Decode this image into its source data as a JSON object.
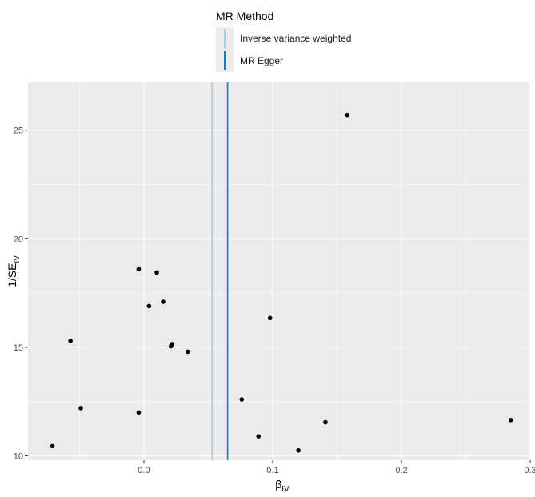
{
  "chart_data": {
    "type": "scatter",
    "xlabel_main": "β",
    "xlabel_sub": "IV",
    "ylabel_main": "1/SE",
    "ylabel_sub": "IV",
    "xlim": [
      -0.09,
      0.3
    ],
    "ylim": [
      9.8,
      27.2
    ],
    "x_ticks": [
      0.0,
      0.1,
      0.2,
      0.3
    ],
    "x_tick_labels": [
      "0.0",
      "0.1",
      "0.2",
      "0.3"
    ],
    "y_ticks": [
      10,
      15,
      20,
      25
    ],
    "y_tick_labels": [
      "10",
      "15",
      "20",
      "25"
    ],
    "grid": true,
    "legend_position": "top",
    "legend": {
      "title": "MR Method",
      "items": [
        {
          "name": "Inverse variance weighted",
          "color": "#a6cee3"
        },
        {
          "name": "MR Egger",
          "color": "#1f78b4"
        }
      ]
    },
    "vlines": [
      {
        "name": "Inverse variance weighted",
        "x": 0.053,
        "color": "#a6cee3"
      },
      {
        "name": "MR Egger",
        "x": 0.065,
        "color": "#1f78b4"
      }
    ],
    "points": [
      {
        "x": 0.158,
        "y": 25.7
      },
      {
        "x": -0.004,
        "y": 18.6
      },
      {
        "x": 0.01,
        "y": 18.45
      },
      {
        "x": 0.015,
        "y": 17.1
      },
      {
        "x": 0.004,
        "y": 16.9
      },
      {
        "x": 0.098,
        "y": 16.35
      },
      {
        "x": -0.057,
        "y": 15.3
      },
      {
        "x": 0.022,
        "y": 15.15
      },
      {
        "x": 0.021,
        "y": 15.05
      },
      {
        "x": 0.034,
        "y": 14.8
      },
      {
        "x": 0.076,
        "y": 12.6
      },
      {
        "x": -0.049,
        "y": 12.2
      },
      {
        "x": -0.004,
        "y": 12.0
      },
      {
        "x": 0.285,
        "y": 11.65
      },
      {
        "x": 0.141,
        "y": 11.55
      },
      {
        "x": 0.089,
        "y": 10.9
      },
      {
        "x": 0.12,
        "y": 10.25
      },
      {
        "x": -0.071,
        "y": 10.45
      }
    ]
  }
}
